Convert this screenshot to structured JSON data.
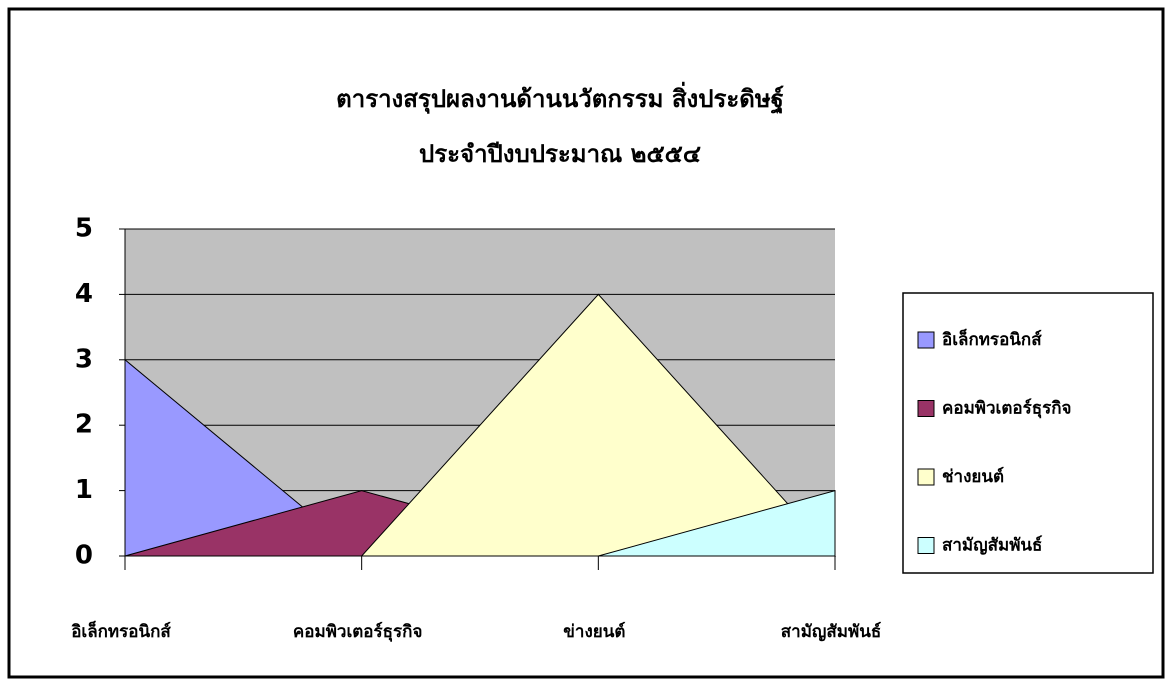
{
  "chart_data": {
    "type": "area",
    "title": "ตารางสรุปผลงานด้านนวัตกรรม สิ่งประดิษฐ์",
    "subtitle": "ประจำปีงบประมาณ ๒๕๕๔",
    "categories": [
      "อิเล็กทรอนิกส์",
      "คอมพิวเตอร์ธุรกิจ",
      "ข่างยนต์",
      "สามัญสัมพันธ์"
    ],
    "series": [
      {
        "name": "อิเล็กทรอนิกส์",
        "color": "#9999ff",
        "values": [
          3,
          0,
          0,
          0
        ]
      },
      {
        "name": "คอมพิวเตอร์ธุรกิจ",
        "color": "#993366",
        "values": [
          0,
          1,
          0,
          0
        ]
      },
      {
        "name": "ช่างยนต์",
        "color": "#ffffcc",
        "values": [
          0,
          0,
          4,
          0
        ]
      },
      {
        "name": "สามัญสัมพันธ์",
        "color": "#ccffff",
        "values": [
          0,
          0,
          0,
          1
        ]
      }
    ],
    "ylim": [
      0,
      5
    ],
    "yticks": [
      0,
      1,
      2,
      3,
      4,
      5
    ],
    "grid": true,
    "legend": "right"
  }
}
